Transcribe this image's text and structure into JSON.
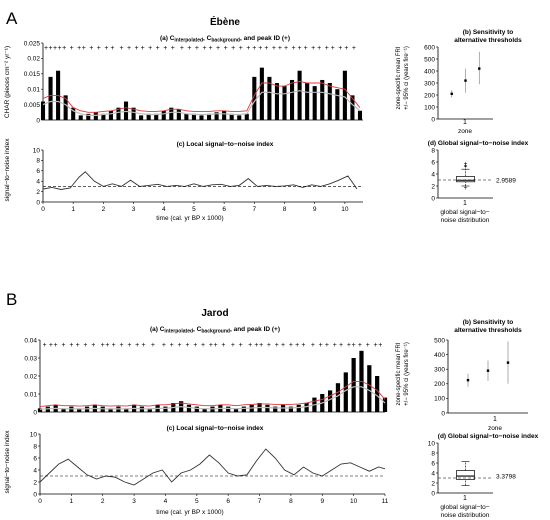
{
  "panels": [
    {
      "letter": "A",
      "site": "Ébène",
      "a": {
        "title_parts": [
          "(a) C",
          "interpolated",
          ", C",
          "background",
          ", and peak ID (+)"
        ],
        "ylabel": "CHAR (pieces cm⁻² yr⁻¹)",
        "yticks": [
          0,
          0.005,
          0.01,
          0.015,
          0.02,
          0.025
        ],
        "yticklabels": [
          "0",
          "0.005",
          "0.01",
          "0.015",
          "0.02",
          "0.025"
        ]
      },
      "b": {
        "title": [
          "(b) Sensitivity to",
          "alternative thresholds"
        ],
        "ylabel": [
          "zone-specific mean FRI",
          "+/− 95% ci (years fire⁻¹)"
        ],
        "yticks": [
          0,
          100,
          200,
          300,
          400,
          500,
          600
        ],
        "yticklabels": [
          "0",
          "100",
          "200",
          "300",
          "400",
          "500",
          "600"
        ],
        "xticklabel": "1",
        "xlabel": "zone"
      },
      "c": {
        "title": "(c) Local signal−to−noise index",
        "ylabel": "signal−to−noise index",
        "yticks": [
          0,
          2,
          4,
          6,
          8,
          10
        ],
        "yticklabels": [
          "0",
          "2",
          "4",
          "6",
          "8",
          "10"
        ],
        "xticks": [
          0,
          1,
          2,
          3,
          4,
          5,
          6,
          7,
          8,
          9,
          10
        ],
        "xticklabels": [
          "0",
          "1",
          "2",
          "3",
          "4",
          "5",
          "6",
          "7",
          "8",
          "9",
          "10"
        ],
        "xlabel": "time (cal. yr BP x 1000)"
      },
      "d": {
        "title": "(d) Global signal−to−noise index",
        "yticks": [
          0,
          2,
          4,
          6,
          8
        ],
        "yticklabels": [
          "0",
          "2",
          "4",
          "6",
          "8"
        ],
        "median_label": "2.9589",
        "xticklabel": "1",
        "xlabel": [
          "global signal−to−",
          "noise distribution"
        ]
      }
    },
    {
      "letter": "B",
      "site": "Jarod",
      "a": {
        "title_parts": [
          "(a) C",
          "interpolated",
          ", C",
          "background",
          ", and peak ID (+)"
        ],
        "ylabel": "",
        "yticks": [
          0,
          0.01,
          0.02,
          0.03,
          0.04
        ],
        "yticklabels": [
          "0",
          "0.01",
          "0.02",
          "0.03",
          "0.04"
        ]
      },
      "b": {
        "title": [
          "(b) Sensitivity to",
          "alternative thresholds"
        ],
        "ylabel": [
          "zone-specific mean FRI",
          "+/− 95% ci (years fire⁻¹)"
        ],
        "yticks": [
          0,
          100,
          200,
          300,
          400,
          500
        ],
        "yticklabels": [
          "0",
          "100",
          "200",
          "300",
          "400",
          "500"
        ],
        "xticklabel": "1",
        "xlabel": "zone"
      },
      "c": {
        "title": "(c) Local signal−to−noise index",
        "ylabel": "signal−to−noise index",
        "yticks": [
          0,
          2,
          4,
          6,
          8,
          10
        ],
        "yticklabels": [
          "0",
          "2",
          "4",
          "6",
          "8",
          "10"
        ],
        "xticks": [
          0,
          1,
          2,
          3,
          4,
          5,
          6,
          7,
          8,
          9,
          10,
          11
        ],
        "xticklabels": [
          "0",
          "1",
          "2",
          "3",
          "4",
          "5",
          "6",
          "7",
          "8",
          "9",
          "10",
          "11"
        ],
        "xlabel": "time (cal. yr BP x 1000)"
      },
      "d": {
        "title": "(d) Global signal−to−noise index",
        "yticks": [
          0,
          2,
          4,
          6,
          8,
          10
        ],
        "yticklabels": [
          "0",
          "2",
          "4",
          "6",
          "8",
          "10"
        ],
        "median_label": "3.3798",
        "xticklabel": "1",
        "xlabel": [
          "global signal−to−",
          "noise distribution"
        ]
      }
    }
  ],
  "colors": {
    "threshold": "#e0393e",
    "background": "#bbbbbb",
    "bars": "#000000",
    "line": "#333333"
  },
  "chart_data": [
    {
      "type": "bar",
      "panel": "A(a)",
      "x": [
        0,
        0.25,
        0.5,
        0.75,
        1,
        1.25,
        1.5,
        1.75,
        2,
        2.25,
        2.5,
        2.75,
        3,
        3.25,
        3.5,
        3.75,
        4,
        4.25,
        4.5,
        4.75,
        5,
        5.25,
        5.5,
        5.75,
        6,
        6.25,
        6.5,
        6.75,
        7,
        7.25,
        7.5,
        7.75,
        8,
        8.25,
        8.5,
        8.75,
        9,
        9.25,
        9.5,
        9.75,
        10,
        10.25,
        10.5
      ],
      "series": [
        {
          "name": "CHAR",
          "values": [
            0.006,
            0.014,
            0.016,
            0.008,
            0.004,
            0.0015,
            0.002,
            0.0025,
            0.002,
            0.003,
            0.004,
            0.006,
            0.004,
            0.0015,
            0.002,
            0.002,
            0.003,
            0.004,
            0.0035,
            0.002,
            0.002,
            0.0015,
            0.002,
            0.0025,
            0.003,
            0.002,
            0.0015,
            0.002,
            0.014,
            0.017,
            0.014,
            0.012,
            0.011,
            0.013,
            0.016,
            0.012,
            0.011,
            0.013,
            0.012,
            0.01,
            0.016,
            0.008,
            0.003
          ]
        },
        {
          "name": "C background",
          "values": [
            0.005,
            0.006,
            0.006,
            0.005,
            0.003,
            0.002,
            0.0015,
            0.0015,
            0.0018,
            0.002,
            0.0025,
            0.0028,
            0.0025,
            0.002,
            0.0018,
            0.0018,
            0.002,
            0.0025,
            0.0025,
            0.002,
            0.0018,
            0.0018,
            0.0018,
            0.002,
            0.002,
            0.0018,
            0.0018,
            0.002,
            0.006,
            0.009,
            0.009,
            0.0085,
            0.0085,
            0.009,
            0.0095,
            0.009,
            0.009,
            0.009,
            0.0085,
            0.008,
            0.0075,
            0.005,
            0.003
          ]
        },
        {
          "name": "threshold",
          "values": [
            0.007,
            0.008,
            0.008,
            0.007,
            0.004,
            0.003,
            0.0025,
            0.0025,
            0.0028,
            0.003,
            0.0035,
            0.004,
            0.0035,
            0.003,
            0.0028,
            0.0028,
            0.003,
            0.0035,
            0.0035,
            0.003,
            0.0028,
            0.0028,
            0.0028,
            0.003,
            0.003,
            0.0028,
            0.0028,
            0.003,
            0.008,
            0.012,
            0.012,
            0.011,
            0.011,
            0.012,
            0.0125,
            0.012,
            0.012,
            0.012,
            0.011,
            0.0105,
            0.01,
            0.007,
            0.004
          ]
        }
      ],
      "peaks": [
        0.1,
        0.25,
        0.4,
        0.55,
        0.7,
        0.95,
        1.2,
        1.35,
        1.6,
        1.85,
        2.1,
        2.3,
        2.6,
        2.85,
        3.1,
        3.3,
        3.55,
        3.8,
        4.05,
        4.3,
        4.6,
        4.85,
        5.1,
        5.35,
        5.55,
        5.8,
        6.05,
        6.3,
        6.55,
        6.8,
        7.0,
        7.2,
        7.4,
        7.65,
        7.85,
        8.05,
        8.3,
        8.5,
        8.7,
        8.95,
        9.15,
        9.4,
        9.6,
        9.85,
        10.05,
        10.3
      ],
      "xlim": [
        0,
        10.6
      ],
      "ylim": [
        0,
        0.025
      ]
    },
    {
      "type": "line",
      "panel": "A(c)",
      "x": [
        0,
        0.3,
        0.6,
        0.9,
        1.2,
        1.4,
        1.7,
        2.0,
        2.3,
        2.6,
        2.9,
        3.2,
        3.5,
        3.8,
        4.1,
        4.4,
        4.7,
        5.0,
        5.3,
        5.6,
        5.9,
        6.2,
        6.5,
        6.8,
        7.1,
        7.4,
        7.7,
        8.0,
        8.3,
        8.6,
        8.9,
        9.2,
        9.5,
        9.8,
        10.1,
        10.4
      ],
      "series": [
        {
          "name": "signal-to-noise index",
          "values": [
            2.5,
            2.8,
            2.4,
            2.7,
            4.8,
            5.8,
            4.0,
            3.0,
            3.5,
            3.0,
            4.2,
            3.0,
            3.2,
            3.4,
            3.0,
            3.2,
            3.0,
            3.5,
            3.0,
            3.3,
            3.4,
            3.0,
            3.2,
            4.5,
            3.0,
            3.2,
            3.0,
            3.1,
            3.3,
            2.8,
            3.3,
            3.0,
            3.5,
            4.2,
            5.0,
            2.5
          ]
        }
      ],
      "threshold": 3,
      "xlim": [
        0,
        10.6
      ],
      "ylim": [
        0,
        10
      ]
    },
    {
      "type": "scatter",
      "panel": "A(b)",
      "categories": [
        "1"
      ],
      "series": [
        {
          "name": "mean FRI",
          "x": [
            0.9,
            1.0,
            1.1
          ],
          "values": [
            210,
            320,
            420
          ],
          "lower": [
            180,
            220,
            290
          ],
          "upper": [
            240,
            420,
            560
          ]
        }
      ],
      "ylim": [
        0,
        600
      ]
    },
    {
      "type": "box",
      "panel": "A(d)",
      "categories": [
        "1"
      ],
      "median": 2.9589,
      "q1": 2.7,
      "q3": 3.6,
      "whisker_low": 2.0,
      "whisker_high": 4.8,
      "outliers": [
        5.2,
        5.5,
        5.8,
        1.7
      ],
      "threshold": 3,
      "ylim": [
        0,
        8
      ]
    },
    {
      "type": "bar",
      "panel": "B(a)",
      "x": [
        0,
        0.25,
        0.5,
        0.75,
        1,
        1.25,
        1.5,
        1.75,
        2,
        2.25,
        2.5,
        2.75,
        3,
        3.25,
        3.5,
        3.75,
        4,
        4.25,
        4.5,
        4.75,
        5,
        5.25,
        5.5,
        5.75,
        6,
        6.25,
        6.5,
        6.75,
        7,
        7.25,
        7.5,
        7.75,
        8,
        8.25,
        8.5,
        8.75,
        9,
        9.25,
        9.5,
        9.75,
        10,
        10.25,
        10.5,
        10.75,
        11
      ],
      "series": [
        {
          "name": "CHAR",
          "values": [
            0.002,
            0.003,
            0.004,
            0.002,
            0.003,
            0.002,
            0.003,
            0.004,
            0.003,
            0.002,
            0.003,
            0.002,
            0.004,
            0.003,
            0.002,
            0.004,
            0.003,
            0.005,
            0.006,
            0.004,
            0.003,
            0.002,
            0.003,
            0.004,
            0.003,
            0.002,
            0.003,
            0.004,
            0.005,
            0.004,
            0.003,
            0.004,
            0.003,
            0.004,
            0.005,
            0.008,
            0.01,
            0.012,
            0.016,
            0.022,
            0.03,
            0.034,
            0.026,
            0.02,
            0.008
          ]
        },
        {
          "name": "C background",
          "values": [
            0.0015,
            0.0018,
            0.002,
            0.0018,
            0.0018,
            0.0017,
            0.0018,
            0.002,
            0.0018,
            0.0017,
            0.0018,
            0.0017,
            0.002,
            0.0018,
            0.0017,
            0.002,
            0.002,
            0.0025,
            0.003,
            0.0025,
            0.002,
            0.0018,
            0.0018,
            0.002,
            0.002,
            0.0018,
            0.002,
            0.0022,
            0.0025,
            0.0025,
            0.0022,
            0.0022,
            0.0022,
            0.0025,
            0.003,
            0.004,
            0.005,
            0.007,
            0.009,
            0.012,
            0.014,
            0.014,
            0.012,
            0.009,
            0.005
          ]
        },
        {
          "name": "threshold",
          "values": [
            0.003,
            0.0035,
            0.004,
            0.0035,
            0.0035,
            0.0033,
            0.0035,
            0.004,
            0.0035,
            0.0033,
            0.0035,
            0.0033,
            0.004,
            0.0035,
            0.0033,
            0.004,
            0.004,
            0.0045,
            0.005,
            0.0045,
            0.004,
            0.0035,
            0.0035,
            0.004,
            0.004,
            0.0035,
            0.004,
            0.0042,
            0.0045,
            0.0045,
            0.0042,
            0.0042,
            0.0042,
            0.0045,
            0.005,
            0.006,
            0.007,
            0.009,
            0.011,
            0.014,
            0.017,
            0.017,
            0.015,
            0.012,
            0.007
          ]
        }
      ],
      "peaks": [
        0.15,
        0.35,
        0.5,
        0.75,
        1.0,
        1.2,
        1.45,
        1.7,
        2.0,
        2.15,
        2.35,
        2.6,
        2.85,
        3.1,
        3.3,
        3.6,
        3.95,
        4.2,
        4.45,
        4.7,
        4.95,
        5.2,
        5.45,
        5.6,
        5.85,
        6.15,
        6.4,
        6.7,
        6.9,
        7.05,
        7.3,
        7.55,
        7.75,
        8.0,
        8.2,
        8.4,
        8.7,
        8.95,
        9.15,
        9.4,
        9.6,
        9.85,
        10.0,
        10.2,
        10.45,
        10.7,
        10.85
      ],
      "xlim": [
        0,
        11
      ],
      "ylim": [
        0,
        0.04
      ]
    },
    {
      "type": "line",
      "panel": "B(c)",
      "x": [
        0,
        0.3,
        0.6,
        0.9,
        1.2,
        1.5,
        1.8,
        2.1,
        2.4,
        2.7,
        3.0,
        3.3,
        3.6,
        3.9,
        4.2,
        4.5,
        4.8,
        5.1,
        5.4,
        5.7,
        6.0,
        6.3,
        6.6,
        6.9,
        7.2,
        7.5,
        7.8,
        8.1,
        8.4,
        8.7,
        9.0,
        9.3,
        9.6,
        9.9,
        10.2,
        10.5,
        10.8,
        11
      ],
      "series": [
        {
          "name": "signal-to-noise index",
          "values": [
            2.0,
            3.5,
            5.0,
            5.8,
            4.5,
            3.2,
            2.5,
            3.0,
            2.8,
            2.0,
            1.5,
            2.5,
            3.5,
            4.0,
            2.0,
            3.5,
            4.0,
            5.0,
            6.5,
            5.2,
            3.5,
            3.0,
            3.2,
            5.5,
            7.5,
            6.0,
            4.0,
            3.2,
            4.5,
            3.5,
            3.0,
            4.0,
            5.0,
            5.2,
            4.5,
            3.8,
            4.5,
            4.2
          ]
        }
      ],
      "threshold": 3,
      "xlim": [
        0,
        11
      ],
      "ylim": [
        0,
        10
      ]
    },
    {
      "type": "scatter",
      "panel": "B(b)",
      "categories": [
        "1"
      ],
      "series": [
        {
          "name": "mean FRI",
          "x": [
            0.9,
            1.0,
            1.1
          ],
          "values": [
            225,
            290,
            345
          ],
          "lower": [
            180,
            220,
            200
          ],
          "upper": [
            270,
            360,
            490
          ]
        }
      ],
      "ylim": [
        0,
        500
      ]
    },
    {
      "type": "box",
      "panel": "B(d)",
      "categories": [
        "1"
      ],
      "median": 3.3798,
      "q1": 2.7,
      "q3": 4.5,
      "whisker_low": 1.5,
      "whisker_high": 6.3,
      "outliers": [],
      "threshold": 3,
      "ylim": [
        0,
        10
      ]
    }
  ]
}
